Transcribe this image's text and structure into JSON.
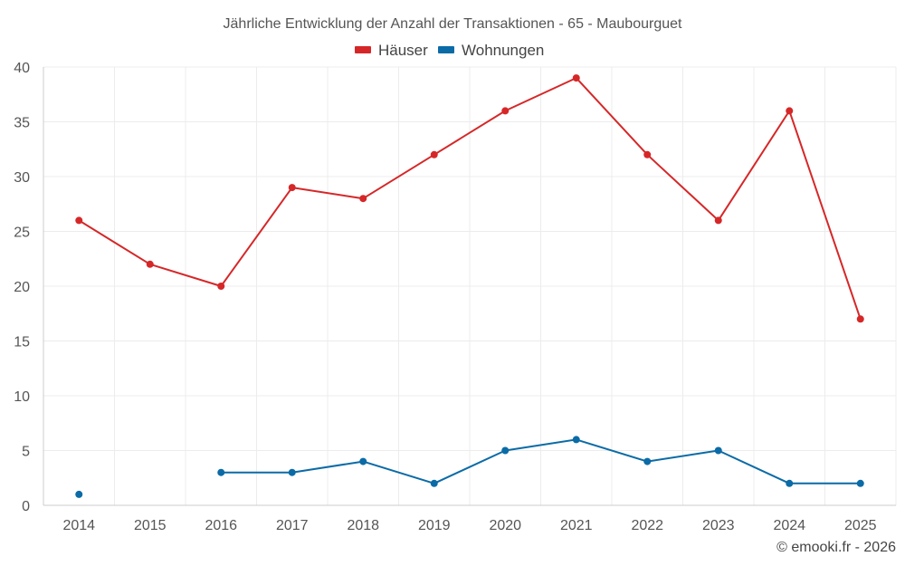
{
  "chart_data": {
    "type": "line",
    "title": "Jährliche Entwicklung der Anzahl der Transaktionen - 65 - Maubourguet",
    "x": [
      "2014",
      "2015",
      "2016",
      "2017",
      "2018",
      "2019",
      "2020",
      "2021",
      "2022",
      "2023",
      "2024",
      "2025"
    ],
    "yticks": [
      "0",
      "5",
      "10",
      "15",
      "20",
      "25",
      "30",
      "35",
      "40"
    ],
    "ylim": [
      0,
      40
    ],
    "grid": true,
    "legend_position": "top-center",
    "series": [
      {
        "name": "Häuser",
        "color": "#d62728",
        "values": [
          26,
          22,
          20,
          29,
          28,
          32,
          36,
          39,
          32,
          26,
          36,
          17
        ]
      },
      {
        "name": "Wohnungen",
        "color": "#0b6ba6",
        "values": [
          1,
          null,
          3,
          3,
          4,
          2,
          5,
          6,
          4,
          5,
          2,
          2
        ]
      }
    ]
  },
  "credit": "© emooki.fr - 2026"
}
